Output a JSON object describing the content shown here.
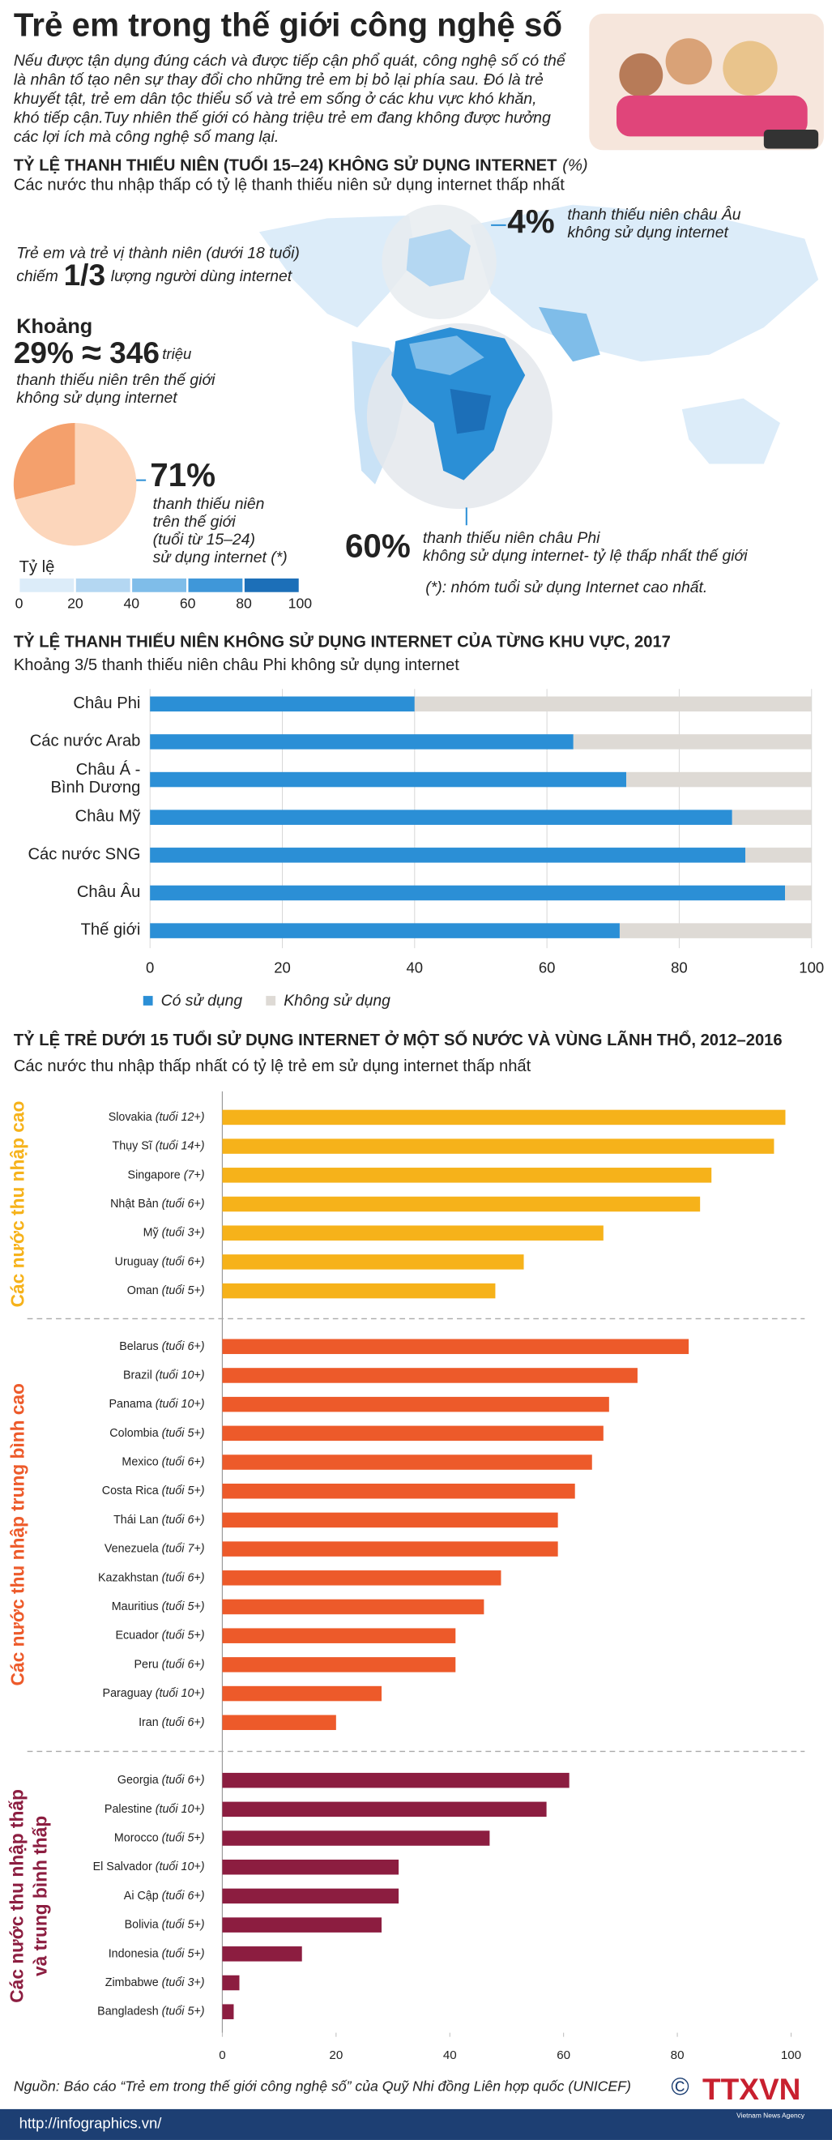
{
  "header": {
    "title": "Trẻ em trong thế giới công nghệ số",
    "intro": [
      "Nếu được tận dụng đúng cách và được tiếp cận phổ quát, công nghệ số có thể",
      "là nhân tố tạo nên sự thay đổi cho những trẻ em bị bỏ lại phía sau. Đó là trẻ",
      "khuyết tật, trẻ em dân tộc thiểu số và trẻ em sống ở các khu vực khó khăn,",
      "khó tiếp cận.Tuy nhiên thế giới có hàng triệu trẻ em đang không được hưởng",
      "các lợi ích mà công nghệ số mang lại."
    ]
  },
  "map": {
    "title": "TỶ LỆ THANH THIẾU NIÊN (TUỔI 15–24) KHÔNG SỬ DỤNG INTERNET",
    "title_unit": "(%)",
    "subtitle": "Các nước thu nhập thấp có tỷ lệ thanh thiếu niên sử dụng internet thấp nhất",
    "europe": {
      "figure": "4%",
      "lines": [
        "thanh thiếu niên châu Âu",
        "không sử dụng internet"
      ]
    },
    "share": {
      "line1": "Trẻ em và trẻ vị thành niên (dưới 18 tuổi)",
      "pre": "chiếm",
      "figure": "1/3",
      "post": "lượng người dùng internet"
    },
    "world": {
      "lead": "Khoảng",
      "approx": "≈",
      "figure": "346",
      "unit": "triệu",
      "lines": [
        "thanh thiếu niên trên thế giới",
        "không sử dụng internet"
      ]
    },
    "world_users": {
      "lines": [
        "thanh thiếu niên",
        "trên thế giới",
        "(tuổi từ 15–24)",
        "sử dụng internet (*)"
      ]
    },
    "africa": {
      "figure": "60%",
      "lines": [
        "thanh thiếu niên châu Phi",
        "không sử dụng internet- tỷ lệ thấp nhất thế giới"
      ]
    },
    "legend": {
      "title": "Tỷ lệ",
      "ticks": [
        0,
        20,
        40,
        60,
        80,
        100
      ],
      "colors": [
        "#dcecf9",
        "#b4d7f2",
        "#7fbde9",
        "#3f97d9",
        "#1c6fb8"
      ]
    },
    "footnote": "(*): nhóm tuổi sử dụng Internet cao nhất."
  },
  "chart_data": [
    {
      "type": "pie",
      "values": [
        29,
        71
      ],
      "value_labels": [
        "29%",
        "71%"
      ],
      "colors": [
        "#f4a06c",
        "#fcd6bb"
      ]
    },
    {
      "type": "bar",
      "orientation": "horizontal",
      "stacked": true,
      "title": "TỶ LỆ THANH THIẾU NIÊN KHÔNG SỬ DỤNG INTERNET CỦA TỪNG KHU VỰC, 2017",
      "subtitle": "Khoảng 3/5 thanh thiếu niên châu Phi không sử dụng internet",
      "categories": [
        "Châu Phi",
        "Các nước Arab",
        "Châu Á -\nBình Dương",
        "Châu Mỹ",
        "Các nước SNG",
        "Châu Âu",
        "Thế giới"
      ],
      "series": [
        {
          "name": "Có sử dụng",
          "color": "#2b8fd6",
          "values": [
            40,
            64,
            72,
            88,
            90,
            96,
            71
          ]
        },
        {
          "name": "Không sử dụng",
          "color": "#dedad5",
          "values": [
            60,
            36,
            28,
            12,
            10,
            4,
            29
          ]
        }
      ],
      "xlim": [
        0,
        100
      ],
      "xticks": [
        0,
        20,
        40,
        60,
        80,
        100
      ],
      "grid": true
    },
    {
      "type": "bar",
      "orientation": "horizontal",
      "stacked": false,
      "title": "TỶ LỆ TRẺ DƯỚI 15 TUỔI SỬ DỤNG INTERNET Ở MỘT SỐ NƯỚC VÀ VÙNG LÃNH THỔ, 2012–2016",
      "subtitle": "Các nước thu nhập thấp nhất có tỷ lệ trẻ em sử dụng internet thấp nhất",
      "series": [
        {
          "name": "Các nước thu nhập cao",
          "color": "#f6b21a",
          "categories": [
            "Slovakia (tuổi 12+)",
            "Thụy Sĩ (tuổi 14+)",
            "Singapore (7+)",
            "Nhật Bản (tuổi 6+)",
            "Mỹ (tuổi 3+)",
            "Uruguay (tuổi 6+)",
            "Oman (tuổi 5+)"
          ],
          "values": [
            99,
            97,
            86,
            84,
            67,
            53,
            48
          ]
        },
        {
          "name": "Các nước thu nhập trung bình cao",
          "color": "#ed5a2a",
          "categories": [
            "Belarus (tuổi 6+)",
            "Brazil (tuổi 10+)",
            "Panama (tuổi 10+)",
            "Colombia (tuổi 5+)",
            "Mexico (tuổi 6+)",
            "Costa Rica (tuổi 5+)",
            "Thái Lan (tuổi 6+)",
            "Venezuela (tuổi 7+)",
            "Kazakhstan (tuổi 6+)",
            "Mauritius (tuổi 5+)",
            "Ecuador (tuổi 5+)",
            "Peru (tuổi 6+)",
            "Paraguay (tuổi 10+)",
            "Iran (tuổi 6+)"
          ],
          "values": [
            82,
            73,
            68,
            67,
            65,
            62,
            59,
            59,
            49,
            46,
            41,
            41,
            28,
            20
          ]
        },
        {
          "name": "Các nước thu nhập thấp\nvà trung bình thấp",
          "color": "#8c1d40",
          "categories": [
            "Georgia (tuổi 6+)",
            "Palestine (tuổi 10+)",
            "Morocco (tuổi 5+)",
            "El Salvador (tuổi 10+)",
            "Ai Cập  (tuổi 6+)",
            "Bolivia (tuổi 5+)",
            "Indonesia (tuổi 5+)",
            "Zimbabwe (tuổi 3+)",
            "Bangladesh (tuổi 5+)"
          ],
          "values": [
            61,
            57,
            47,
            31,
            31,
            28,
            14,
            3,
            2
          ]
        }
      ],
      "xlim": [
        0,
        100
      ],
      "xticks": [
        0,
        20,
        40,
        60,
        80,
        100
      ],
      "grid": false
    }
  ],
  "footer": {
    "source": "Nguồn: Báo cáo “Trẻ em trong thế giới công nghệ số” của Quỹ Nhi đồng Liên hợp quốc (UNICEF)",
    "url": "http://infographics.vn/",
    "copyright": "©",
    "logo": "TTXVN",
    "agency": "Vietnam News Agency"
  }
}
